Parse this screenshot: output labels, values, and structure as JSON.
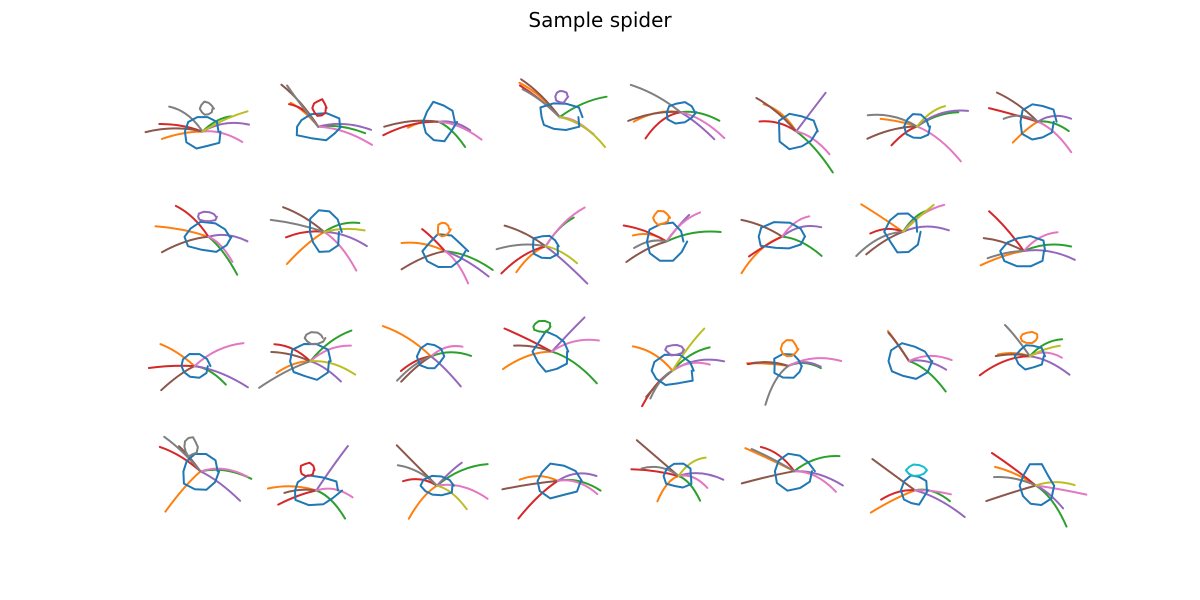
{
  "figure": {
    "title": "Sample spider",
    "rows": 4,
    "cols": 8
  },
  "stroke_palette": [
    "#1f77b4",
    "#ff7f0e",
    "#2ca02c",
    "#d62728",
    "#9467bd",
    "#8c564b",
    "#e377c2",
    "#7f7f7f",
    "#bcbd22",
    "#17becf"
  ]
}
